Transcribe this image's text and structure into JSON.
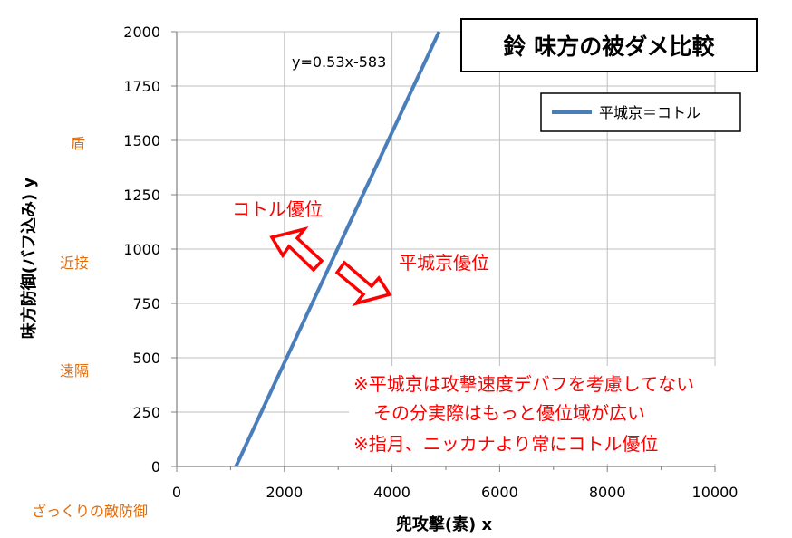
{
  "chart_data": {
    "type": "line",
    "title": "鈴 味方の被ダメ比較",
    "xlabel": "兜攻撃(素) x",
    "ylabel": "味方防御(バフ込み) y",
    "xlim": [
      0,
      10000
    ],
    "ylim": [
      0,
      2000
    ],
    "x_ticks": [
      "0",
      "2000",
      "4000",
      "6000",
      "8000",
      "10000"
    ],
    "y_ticks": [
      "0",
      "250",
      "500",
      "750",
      "1000",
      "1250",
      "1500",
      "1750",
      "2000"
    ],
    "grid": true,
    "legend_position": "top-right",
    "series": [
      {
        "name": "平城京＝コトル",
        "color": "#4a7ebb",
        "slope": 0.53,
        "intercept": -583,
        "x": [
          1100,
          4874
        ],
        "y": [
          0,
          2000
        ]
      }
    ],
    "equation_label": "y=0.53x-583",
    "y_side_labels": [
      "盾",
      "近接",
      "遠隔"
    ],
    "corner_label": "ざっくりの敵防御",
    "region_labels": {
      "left": "コトル優位",
      "right": "平城京優位"
    },
    "notes": [
      "※平城京は攻撃速度デバフを考慮してない",
      "その分実際はもっと優位域が広い",
      "※指月、ニッカナより常にコトル優位"
    ]
  },
  "colors": {
    "line": "#4a7ebb",
    "arrow": "#ff0000",
    "orange": "#e36c0a",
    "grid": "#bfbfbf"
  }
}
